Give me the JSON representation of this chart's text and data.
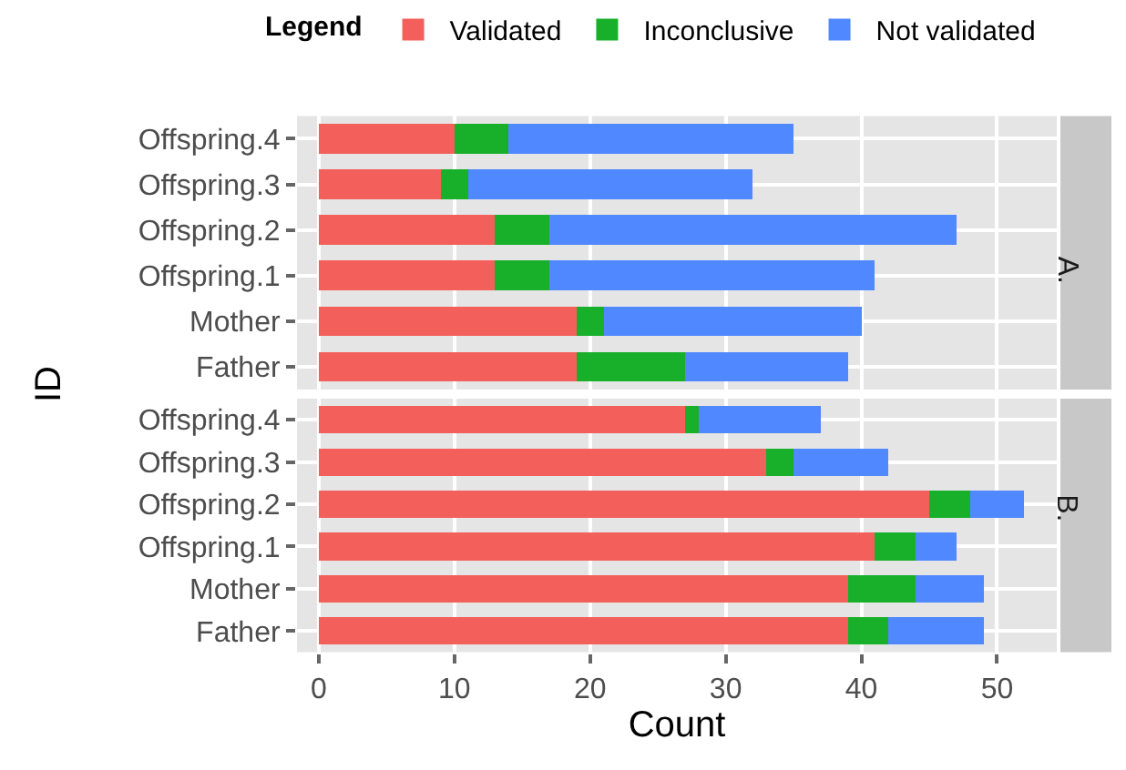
{
  "chart_data": [
    {
      "type": "bar",
      "orientation": "horizontal",
      "stacked": true,
      "title": "A.",
      "ylabel": "ID",
      "legend_title": "Legend",
      "legend": "top",
      "grid": true,
      "tick_labels": "y",
      "categories": [
        "Offspring.4",
        "Offspring.3",
        "Offspring.2",
        "Offspring.1",
        "Mother",
        "Father"
      ],
      "xlim": [
        -1.6,
        54.4
      ],
      "xticks": [
        0,
        10,
        20,
        30,
        40,
        50
      ],
      "series": [
        {
          "name": "Validated",
          "color": "#f35f5a",
          "values": [
            10,
            9,
            13,
            13,
            19,
            19
          ]
        },
        {
          "name": "Inconclusive",
          "color": "#18b02b",
          "values": [
            4,
            2,
            4,
            4,
            2,
            8
          ]
        },
        {
          "name": "Not validated",
          "color": "#4f88ff",
          "values": [
            21,
            21,
            30,
            24,
            19,
            12
          ]
        }
      ]
    },
    {
      "type": "bar",
      "orientation": "horizontal",
      "stacked": true,
      "title": "B.",
      "xlabel": "Count",
      "grid": true,
      "categories": [
        "Offspring.4",
        "Offspring.3",
        "Offspring.2",
        "Offspring.1",
        "Mother",
        "Father"
      ],
      "xlim": [
        -1.6,
        54.4
      ],
      "xticks": [
        0,
        10,
        20,
        30,
        40,
        50
      ],
      "series": [
        {
          "color": "#f35f5a",
          "values": [
            27,
            33,
            45,
            41,
            39,
            39
          ]
        },
        {
          "color": "#18b02b",
          "values": [
            1,
            2,
            3,
            3,
            5,
            3
          ]
        },
        {
          "color": "#4f88ff",
          "values": [
            9,
            7,
            4,
            3,
            5,
            7
          ]
        }
      ]
    }
  ]
}
